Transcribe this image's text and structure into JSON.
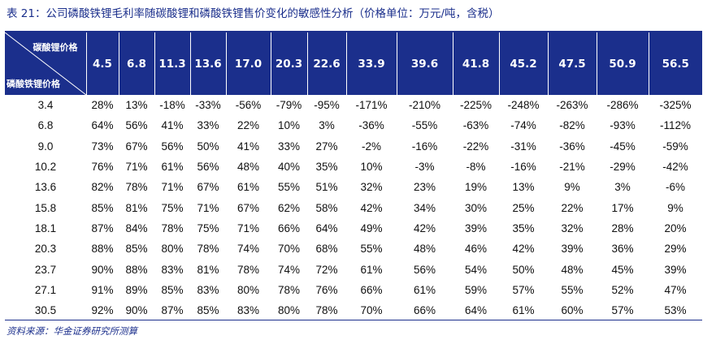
{
  "title": "表 21：公司磷酸铁锂毛利率随碳酸锂和磷酸铁锂售价变化的敏感性分析（价格单位：万元/吨，含税）",
  "corner": {
    "col_label": "碳酸锂价格",
    "row_label": "磷酸铁锂价格"
  },
  "columns": [
    "4.5",
    "6.8",
    "11.3",
    "13.6",
    "17.0",
    "20.3",
    "22.6",
    "33.9",
    "39.6",
    "41.8",
    "45.2",
    "47.5",
    "50.9",
    "56.5"
  ],
  "rows": [
    {
      "label": "3.4",
      "cells": [
        "28%",
        "13%",
        "-18%",
        "-33%",
        "-56%",
        "-79%",
        "-95%",
        "-171%",
        "-210%",
        "-225%",
        "-248%",
        "-263%",
        "-286%",
        "-325%"
      ]
    },
    {
      "label": "6.8",
      "cells": [
        "64%",
        "56%",
        "41%",
        "33%",
        "22%",
        "10%",
        "3%",
        "-36%",
        "-55%",
        "-63%",
        "-74%",
        "-82%",
        "-93%",
        "-112%"
      ]
    },
    {
      "label": "9.0",
      "cells": [
        "73%",
        "67%",
        "56%",
        "50%",
        "41%",
        "33%",
        "27%",
        "-2%",
        "-16%",
        "-22%",
        "-31%",
        "-36%",
        "-45%",
        "-59%"
      ]
    },
    {
      "label": "10.2",
      "cells": [
        "76%",
        "71%",
        "61%",
        "56%",
        "48%",
        "40%",
        "35%",
        "10%",
        "-3%",
        "-8%",
        "-16%",
        "-21%",
        "-29%",
        "-42%"
      ]
    },
    {
      "label": "13.6",
      "cells": [
        "82%",
        "78%",
        "71%",
        "67%",
        "61%",
        "55%",
        "51%",
        "32%",
        "23%",
        "19%",
        "13%",
        "9%",
        "3%",
        "-6%"
      ]
    },
    {
      "label": "15.8",
      "cells": [
        "85%",
        "81%",
        "75%",
        "71%",
        "67%",
        "62%",
        "58%",
        "42%",
        "34%",
        "30%",
        "25%",
        "22%",
        "17%",
        "9%"
      ]
    },
    {
      "label": "18.1",
      "cells": [
        "87%",
        "84%",
        "78%",
        "75%",
        "71%",
        "66%",
        "64%",
        "49%",
        "42%",
        "39%",
        "35%",
        "32%",
        "28%",
        "20%"
      ]
    },
    {
      "label": "20.3",
      "cells": [
        "88%",
        "85%",
        "80%",
        "78%",
        "74%",
        "70%",
        "68%",
        "55%",
        "48%",
        "46%",
        "42%",
        "39%",
        "36%",
        "29%"
      ]
    },
    {
      "label": "23.7",
      "cells": [
        "90%",
        "88%",
        "83%",
        "81%",
        "78%",
        "74%",
        "72%",
        "61%",
        "56%",
        "54%",
        "50%",
        "48%",
        "45%",
        "39%"
      ]
    },
    {
      "label": "27.1",
      "cells": [
        "91%",
        "89%",
        "85%",
        "83%",
        "80%",
        "78%",
        "76%",
        "66%",
        "61%",
        "59%",
        "57%",
        "55%",
        "52%",
        "47%"
      ]
    },
    {
      "label": "30.5",
      "cells": [
        "92%",
        "90%",
        "87%",
        "85%",
        "83%",
        "80%",
        "78%",
        "70%",
        "66%",
        "64%",
        "61%",
        "60%",
        "57%",
        "53%"
      ]
    }
  ],
  "source": "资料来源：华金证券研究所测算",
  "colors": {
    "header_bg": "#1b2f8c",
    "header_text": "#ffffff",
    "title_text": "#1b2f8c"
  }
}
